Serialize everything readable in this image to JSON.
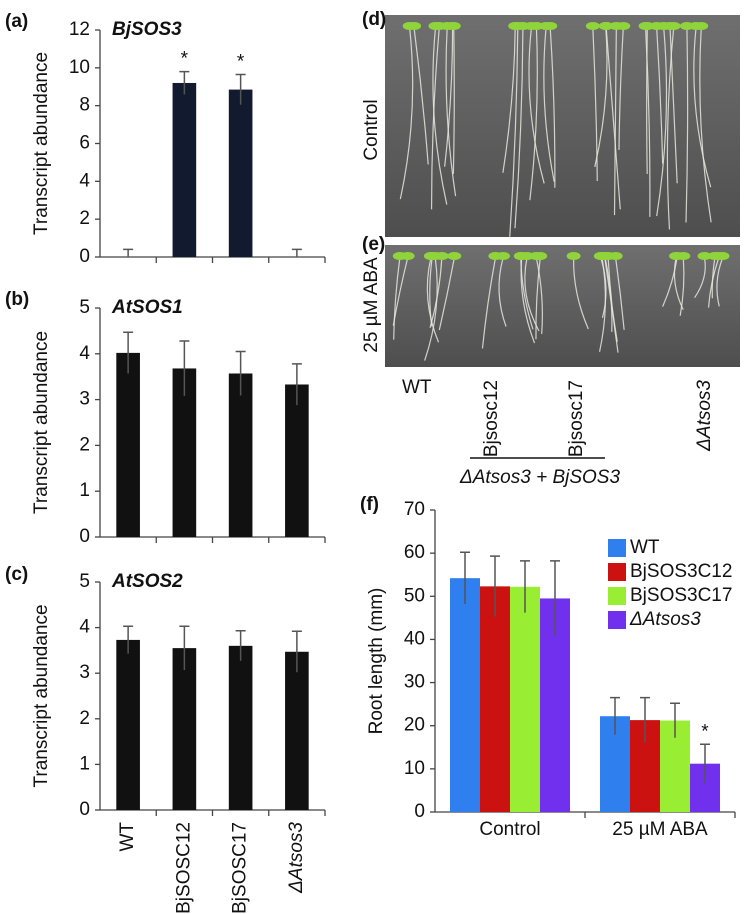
{
  "chart_data": [
    {
      "type": "bar",
      "label": "(a)",
      "title": "BjSOS3",
      "y_label": "Transcript abundance",
      "categories": [
        null,
        null,
        null,
        null
      ],
      "values": [
        0,
        9.2,
        8.85,
        0
      ],
      "errors": [
        0.4,
        0.6,
        0.8,
        0.4
      ],
      "value_annotations": [
        null,
        "*",
        "*",
        null
      ],
      "color": "#121a30",
      "ylim": [
        0,
        12
      ],
      "yticks": [
        0,
        2,
        4,
        6,
        8,
        10,
        12
      ]
    },
    {
      "type": "bar",
      "label": "(b)",
      "title": "AtSOS1",
      "y_label": "Transcript abundance",
      "categories": [
        null,
        null,
        null,
        null
      ],
      "values": [
        4.02,
        3.68,
        3.57,
        3.33
      ],
      "errors": [
        0.45,
        0.6,
        0.48,
        0.45
      ],
      "color": "#111111",
      "ylim": [
        0,
        5
      ],
      "yticks": [
        0,
        1,
        2,
        3,
        4,
        5
      ]
    },
    {
      "type": "bar",
      "label": "(c)",
      "title": "AtSOS2",
      "y_label": "Transcript abundance",
      "categories": [
        "WT",
        "BjSOSC12",
        "BjSOSC17",
        "ΔAtsos3"
      ],
      "values": [
        3.73,
        3.55,
        3.6,
        3.47
      ],
      "errors": [
        0.3,
        0.48,
        0.33,
        0.45
      ],
      "color": "#111111",
      "ylim": [
        0,
        5
      ],
      "yticks": [
        0,
        1,
        2,
        3,
        4,
        5
      ]
    },
    {
      "type": "grouped_bar",
      "label": "(f)",
      "y_label": "Root length (mm)",
      "categories": [
        "Control",
        "25 µM ABA"
      ],
      "series": [
        {
          "name": "WT",
          "color": "#2f7fef",
          "values": [
            54.2,
            22.2
          ],
          "errors": [
            6,
            4.3
          ]
        },
        {
          "name": "BjSOS3C12",
          "color": "#cc1111",
          "values": [
            52.3,
            21.3
          ],
          "errors": [
            7,
            5.2
          ]
        },
        {
          "name": "BjSOS3C17",
          "color": "#99ee33",
          "values": [
            52.2,
            21.2
          ],
          "errors": [
            6,
            4
          ]
        },
        {
          "name": "ΔAtsos3",
          "color": "#7030ee",
          "values": [
            49.5,
            11.2
          ],
          "errors": [
            8.7,
            4.5
          ],
          "value_annotations": [
            null,
            "*"
          ]
        }
      ],
      "ylim": [
        0,
        70
      ],
      "yticks": [
        0,
        10,
        20,
        30,
        40,
        50,
        60,
        70
      ],
      "legend": "upper-right"
    }
  ],
  "photos": {
    "panels": [
      "(d)",
      "(e)"
    ],
    "rows": [
      "Control",
      "25 µM ABA"
    ],
    "lines": [
      "WT",
      "Bjsosc12",
      "Bjsosc17",
      "ΔAtsos3"
    ],
    "group": "ΔAtsos3 + BjSOS3"
  }
}
